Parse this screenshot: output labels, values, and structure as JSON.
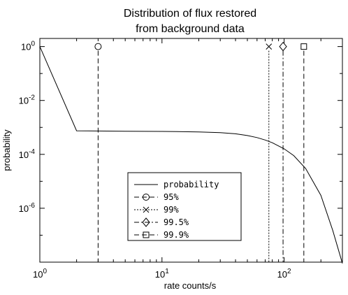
{
  "chart_data": {
    "type": "line",
    "title": [
      "Distribution of flux restored",
      "from background data"
    ],
    "xlabel": "rate counts/s",
    "ylabel": "probability",
    "x_scale": "log",
    "y_scale": "log",
    "xlim": [
      1,
      300
    ],
    "ylim": [
      1e-08,
      2
    ],
    "x_ticks": [
      {
        "value": 1,
        "base": "10",
        "exp": "0"
      },
      {
        "value": 10,
        "base": "10",
        "exp": "1"
      },
      {
        "value": 100,
        "base": "10",
        "exp": "2"
      }
    ],
    "y_ticks": [
      {
        "value": 1,
        "base": "10",
        "exp": "0"
      },
      {
        "value": 0.01,
        "base": "10",
        "exp": "-2"
      },
      {
        "value": 0.0001,
        "base": "10",
        "exp": "-4"
      },
      {
        "value": 1e-06,
        "base": "10",
        "exp": "-6"
      }
    ],
    "grid": false,
    "legend_position": "lower-center",
    "series": [
      {
        "name": "probability",
        "style": "solid",
        "x": [
          1,
          2,
          5,
          10,
          20,
          30,
          40,
          50,
          60,
          70,
          80,
          100,
          120,
          150,
          200,
          250,
          300
        ],
        "y": [
          1,
          0.00075,
          0.00072,
          0.00071,
          0.00068,
          0.00064,
          0.00058,
          0.0005,
          0.00042,
          0.00034,
          0.00027,
          0.00016,
          9e-05,
          3e-05,
          3e-06,
          1.5e-07,
          9e-09
        ]
      }
    ],
    "thresholds": [
      {
        "label": "95%",
        "x": 3,
        "marker": "circle",
        "dash": "long-dash"
      },
      {
        "label": "99%",
        "x": 75,
        "marker": "x",
        "dash": "dotted"
      },
      {
        "label": "99.5%",
        "x": 98,
        "marker": "diamond",
        "dash": "dash-dot"
      },
      {
        "label": "99.9%",
        "x": 145,
        "marker": "square",
        "dash": "long-dash"
      }
    ]
  }
}
